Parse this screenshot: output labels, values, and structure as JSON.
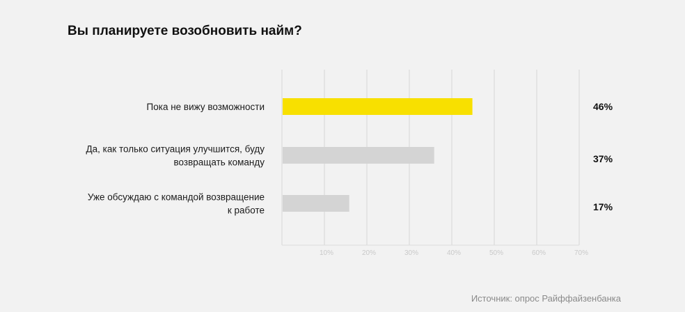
{
  "title": "Вы планируете возобновить найм?",
  "source": "Источник: опрос Райффайзенбанка",
  "colors": {
    "highlight": "#f8e000",
    "bar": "#d4d4d4",
    "grid": "#dcdcdc",
    "background": "#f2f2f2"
  },
  "chart_data": {
    "type": "bar",
    "orientation": "horizontal",
    "categories": [
      [
        "Пока не вижу возможности"
      ],
      [
        "Да, как только ситуация улучшится, буду",
        "возвращать команду"
      ],
      [
        "Уже обсуждаю с командой возвращение",
        "к работе"
      ]
    ],
    "values": [
      46,
      37,
      17
    ],
    "value_labels": [
      "46%",
      "37%",
      "17%"
    ],
    "highlight_index": 0,
    "xlim": [
      0,
      70
    ],
    "xticks": [
      10,
      20,
      30,
      40,
      50,
      60,
      70
    ],
    "xtick_labels": [
      "10%",
      "20%",
      "30%",
      "40%",
      "50%",
      "60%",
      "70%"
    ],
    "grid": true,
    "title": "Вы планируете возобновить найм?",
    "xlabel": "",
    "ylabel": ""
  }
}
